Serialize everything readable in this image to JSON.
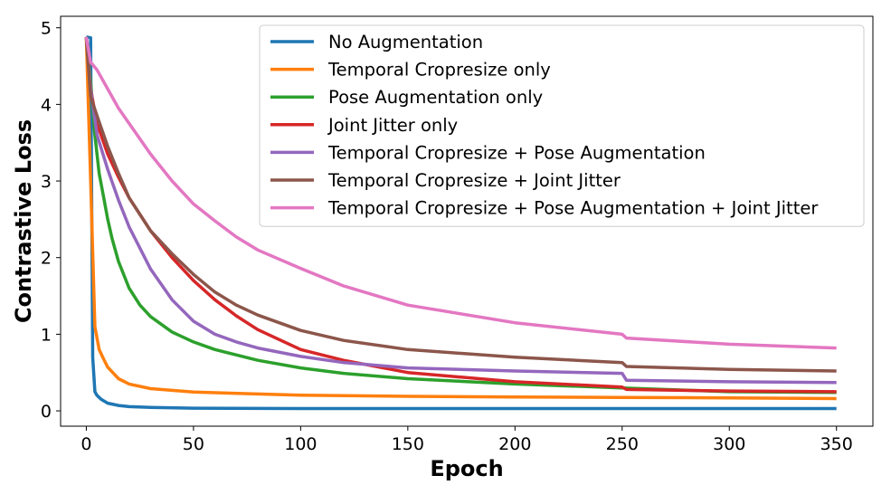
{
  "chart_data": {
    "type": "line",
    "title": "",
    "xlabel": "Epoch",
    "ylabel": "Contrastive Loss",
    "xlim": [
      -12,
      367
    ],
    "ylim": [
      -0.2,
      5.15
    ],
    "xticks": [
      0,
      50,
      100,
      150,
      200,
      250,
      300,
      350
    ],
    "yticks": [
      0,
      1,
      2,
      3,
      4,
      5
    ],
    "grid": false,
    "legend_position": "upper right",
    "series": [
      {
        "name": "No Augmentation",
        "color": "#1f77b4",
        "x": [
          0,
          2,
          3,
          4,
          5,
          7,
          10,
          15,
          20,
          30,
          50,
          100,
          150,
          200,
          250,
          300,
          350
        ],
        "y": [
          4.88,
          4.87,
          0.7,
          0.25,
          0.2,
          0.15,
          0.1,
          0.07,
          0.055,
          0.045,
          0.035,
          0.03,
          0.03,
          0.03,
          0.03,
          0.03,
          0.03
        ]
      },
      {
        "name": "Temporal Cropresize only",
        "color": "#ff7f0e",
        "x": [
          0,
          2,
          4,
          6,
          8,
          10,
          15,
          20,
          30,
          50,
          100,
          150,
          200,
          250,
          300,
          350
        ],
        "y": [
          4.88,
          3.0,
          1.1,
          0.8,
          0.68,
          0.57,
          0.42,
          0.35,
          0.29,
          0.245,
          0.205,
          0.19,
          0.18,
          0.175,
          0.17,
          0.16
        ]
      },
      {
        "name": "Pose Augmentation only",
        "color": "#2ca02c",
        "x": [
          0,
          2,
          4,
          6,
          8,
          10,
          12,
          15,
          20,
          25,
          30,
          40,
          50,
          60,
          80,
          100,
          120,
          150,
          200,
          250,
          300,
          350
        ],
        "y": [
          4.88,
          4.3,
          3.6,
          3.1,
          2.8,
          2.5,
          2.25,
          1.95,
          1.6,
          1.38,
          1.23,
          1.03,
          0.9,
          0.8,
          0.66,
          0.56,
          0.49,
          0.42,
          0.35,
          0.3,
          0.25,
          0.24
        ]
      },
      {
        "name": "Joint Jitter only",
        "color": "#d62728",
        "x": [
          0,
          2,
          5,
          10,
          15,
          20,
          30,
          40,
          50,
          60,
          70,
          80,
          100,
          120,
          150,
          200,
          250,
          252,
          300,
          350
        ],
        "y": [
          4.88,
          4.2,
          3.75,
          3.35,
          3.05,
          2.78,
          2.35,
          2.0,
          1.7,
          1.45,
          1.24,
          1.06,
          0.8,
          0.66,
          0.5,
          0.38,
          0.31,
          0.28,
          0.26,
          0.25
        ]
      },
      {
        "name": "Temporal Cropresize + Pose Augmentation",
        "color": "#9467bd",
        "x": [
          0,
          2,
          5,
          10,
          15,
          20,
          30,
          40,
          50,
          60,
          70,
          80,
          100,
          120,
          150,
          200,
          250,
          252,
          300,
          350
        ],
        "y": [
          4.88,
          4.2,
          3.6,
          3.15,
          2.75,
          2.4,
          1.85,
          1.45,
          1.17,
          1.0,
          0.9,
          0.82,
          0.71,
          0.63,
          0.56,
          0.52,
          0.49,
          0.4,
          0.38,
          0.37
        ]
      },
      {
        "name": "Temporal Cropresize + Joint Jitter",
        "color": "#8c564b",
        "x": [
          0,
          2,
          5,
          10,
          15,
          20,
          30,
          40,
          50,
          60,
          70,
          80,
          100,
          120,
          150,
          200,
          250,
          252,
          300,
          350
        ],
        "y": [
          4.88,
          4.1,
          3.85,
          3.45,
          3.1,
          2.78,
          2.35,
          2.05,
          1.78,
          1.55,
          1.38,
          1.25,
          1.05,
          0.92,
          0.8,
          0.7,
          0.63,
          0.58,
          0.54,
          0.52
        ]
      },
      {
        "name": "Temporal Cropresize + Pose Augmentation + Joint Jitter",
        "color": "#e377c2",
        "x": [
          0,
          2,
          5,
          10,
          15,
          20,
          30,
          40,
          50,
          60,
          70,
          80,
          100,
          120,
          150,
          200,
          250,
          252,
          300,
          350
        ],
        "y": [
          4.88,
          4.55,
          4.45,
          4.2,
          3.95,
          3.75,
          3.35,
          3.0,
          2.7,
          2.48,
          2.27,
          2.1,
          1.86,
          1.63,
          1.38,
          1.15,
          1.0,
          0.95,
          0.87,
          0.82
        ]
      }
    ]
  }
}
